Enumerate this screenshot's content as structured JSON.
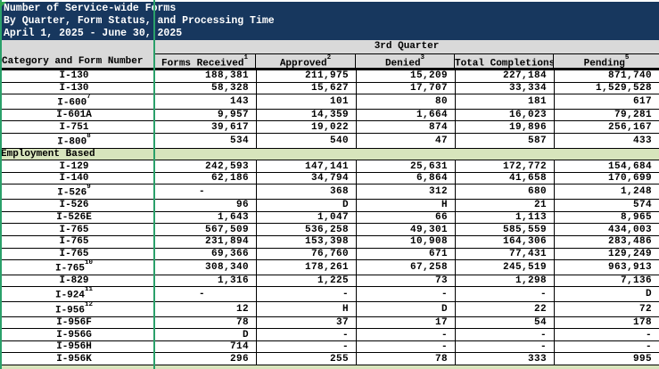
{
  "title": {
    "line1": "Number of Service-wide Forms",
    "line2": "By Quarter, Form Status, and Processing Time",
    "line3": "April 1, 2025 - June 30, 2025"
  },
  "header": {
    "category_col": "Category and Form Number",
    "quarter": "3rd Quarter",
    "columns": [
      {
        "label": "Forms Received",
        "sup": "1"
      },
      {
        "label": "Approved",
        "sup": "2"
      },
      {
        "label": "Denied",
        "sup": "3"
      },
      {
        "label": "Total Completions",
        "sup": "4"
      },
      {
        "label": "Pending",
        "sup": "5"
      }
    ]
  },
  "table": {
    "rows": [
      {
        "type": "data",
        "form": "I-130",
        "sup": "",
        "values": [
          "188,381",
          "211,975",
          "15,209",
          "227,184",
          "871,740"
        ]
      },
      {
        "type": "data",
        "form": "I-130",
        "sup": "",
        "values": [
          "58,328",
          "15,627",
          "17,707",
          "33,334",
          "1,529,528"
        ]
      },
      {
        "type": "data",
        "form": "I-600",
        "sup": "7",
        "values": [
          "143",
          "101",
          "80",
          "181",
          "617"
        ]
      },
      {
        "type": "data",
        "form": "I-601A",
        "sup": "",
        "values": [
          "9,957",
          "14,359",
          "1,664",
          "16,023",
          "79,281"
        ]
      },
      {
        "type": "data",
        "form": "I-751",
        "sup": "",
        "values": [
          "39,617",
          "19,022",
          "874",
          "19,896",
          "256,167"
        ]
      },
      {
        "type": "data",
        "form": "I-800",
        "sup": "8",
        "values": [
          "534",
          "540",
          "47",
          "587",
          "433"
        ]
      },
      {
        "type": "section",
        "label": "Employment Based"
      },
      {
        "type": "data",
        "form": "I-129",
        "sup": "",
        "values": [
          "242,593",
          "147,141",
          "25,631",
          "172,772",
          "154,684"
        ]
      },
      {
        "type": "data",
        "form": "I-140",
        "sup": "",
        "values": [
          "62,186",
          "34,794",
          "6,864",
          "41,658",
          "170,699"
        ]
      },
      {
        "type": "data",
        "form": "I-526",
        "sup": "9",
        "values": [
          "-",
          "368",
          "312",
          "680",
          "1,248"
        ]
      },
      {
        "type": "data",
        "form": "I-526",
        "sup": "",
        "values": [
          "96",
          "D",
          "H",
          "21",
          "574"
        ]
      },
      {
        "type": "data",
        "form": "I-526E",
        "sup": "",
        "values": [
          "1,643",
          "1,047",
          "66",
          "1,113",
          "8,965"
        ]
      },
      {
        "type": "data",
        "form": "I-765",
        "sup": "",
        "values": [
          "567,509",
          "536,258",
          "49,301",
          "585,559",
          "434,003"
        ]
      },
      {
        "type": "data",
        "form": "I-765",
        "sup": "",
        "values": [
          "231,894",
          "153,398",
          "10,908",
          "164,306",
          "283,486"
        ]
      },
      {
        "type": "data",
        "form": "I-765",
        "sup": "",
        "values": [
          "69,366",
          "76,760",
          "671",
          "77,431",
          "129,249"
        ]
      },
      {
        "type": "data",
        "form": "I-765",
        "sup": "10",
        "values": [
          "308,340",
          "178,261",
          "67,258",
          "245,519",
          "963,913"
        ]
      },
      {
        "type": "data",
        "form": "I-829",
        "sup": "",
        "values": [
          "1,316",
          "1,225",
          "73",
          "1,298",
          "7,136"
        ]
      },
      {
        "type": "data",
        "form": "I-924",
        "sup": "11",
        "values": [
          "-",
          "-",
          "-",
          "-",
          "D"
        ]
      },
      {
        "type": "data",
        "form": "I-956",
        "sup": "12",
        "values": [
          "12",
          "H",
          "D",
          "22",
          "72"
        ]
      },
      {
        "type": "data",
        "form": "I-956F",
        "sup": "",
        "values": [
          "78",
          "37",
          "17",
          "54",
          "178"
        ]
      },
      {
        "type": "data",
        "form": "I-956G",
        "sup": "",
        "values": [
          "D",
          "-",
          "-",
          "-",
          "-"
        ]
      },
      {
        "type": "data",
        "form": "I-956H",
        "sup": "",
        "values": [
          "714",
          "-",
          "-",
          "-",
          "-"
        ]
      },
      {
        "type": "data",
        "form": "I-956K",
        "sup": "",
        "values": [
          "296",
          "255",
          "78",
          "333",
          "995"
        ]
      },
      {
        "type": "section",
        "label": ""
      }
    ]
  },
  "colors": {
    "title_bg": "#17375E",
    "header_bg": "#D9D9D9",
    "section_bg": "#D7E4BC",
    "pane_line": "#2AA06A",
    "error_triangle": "#2FA84F"
  }
}
